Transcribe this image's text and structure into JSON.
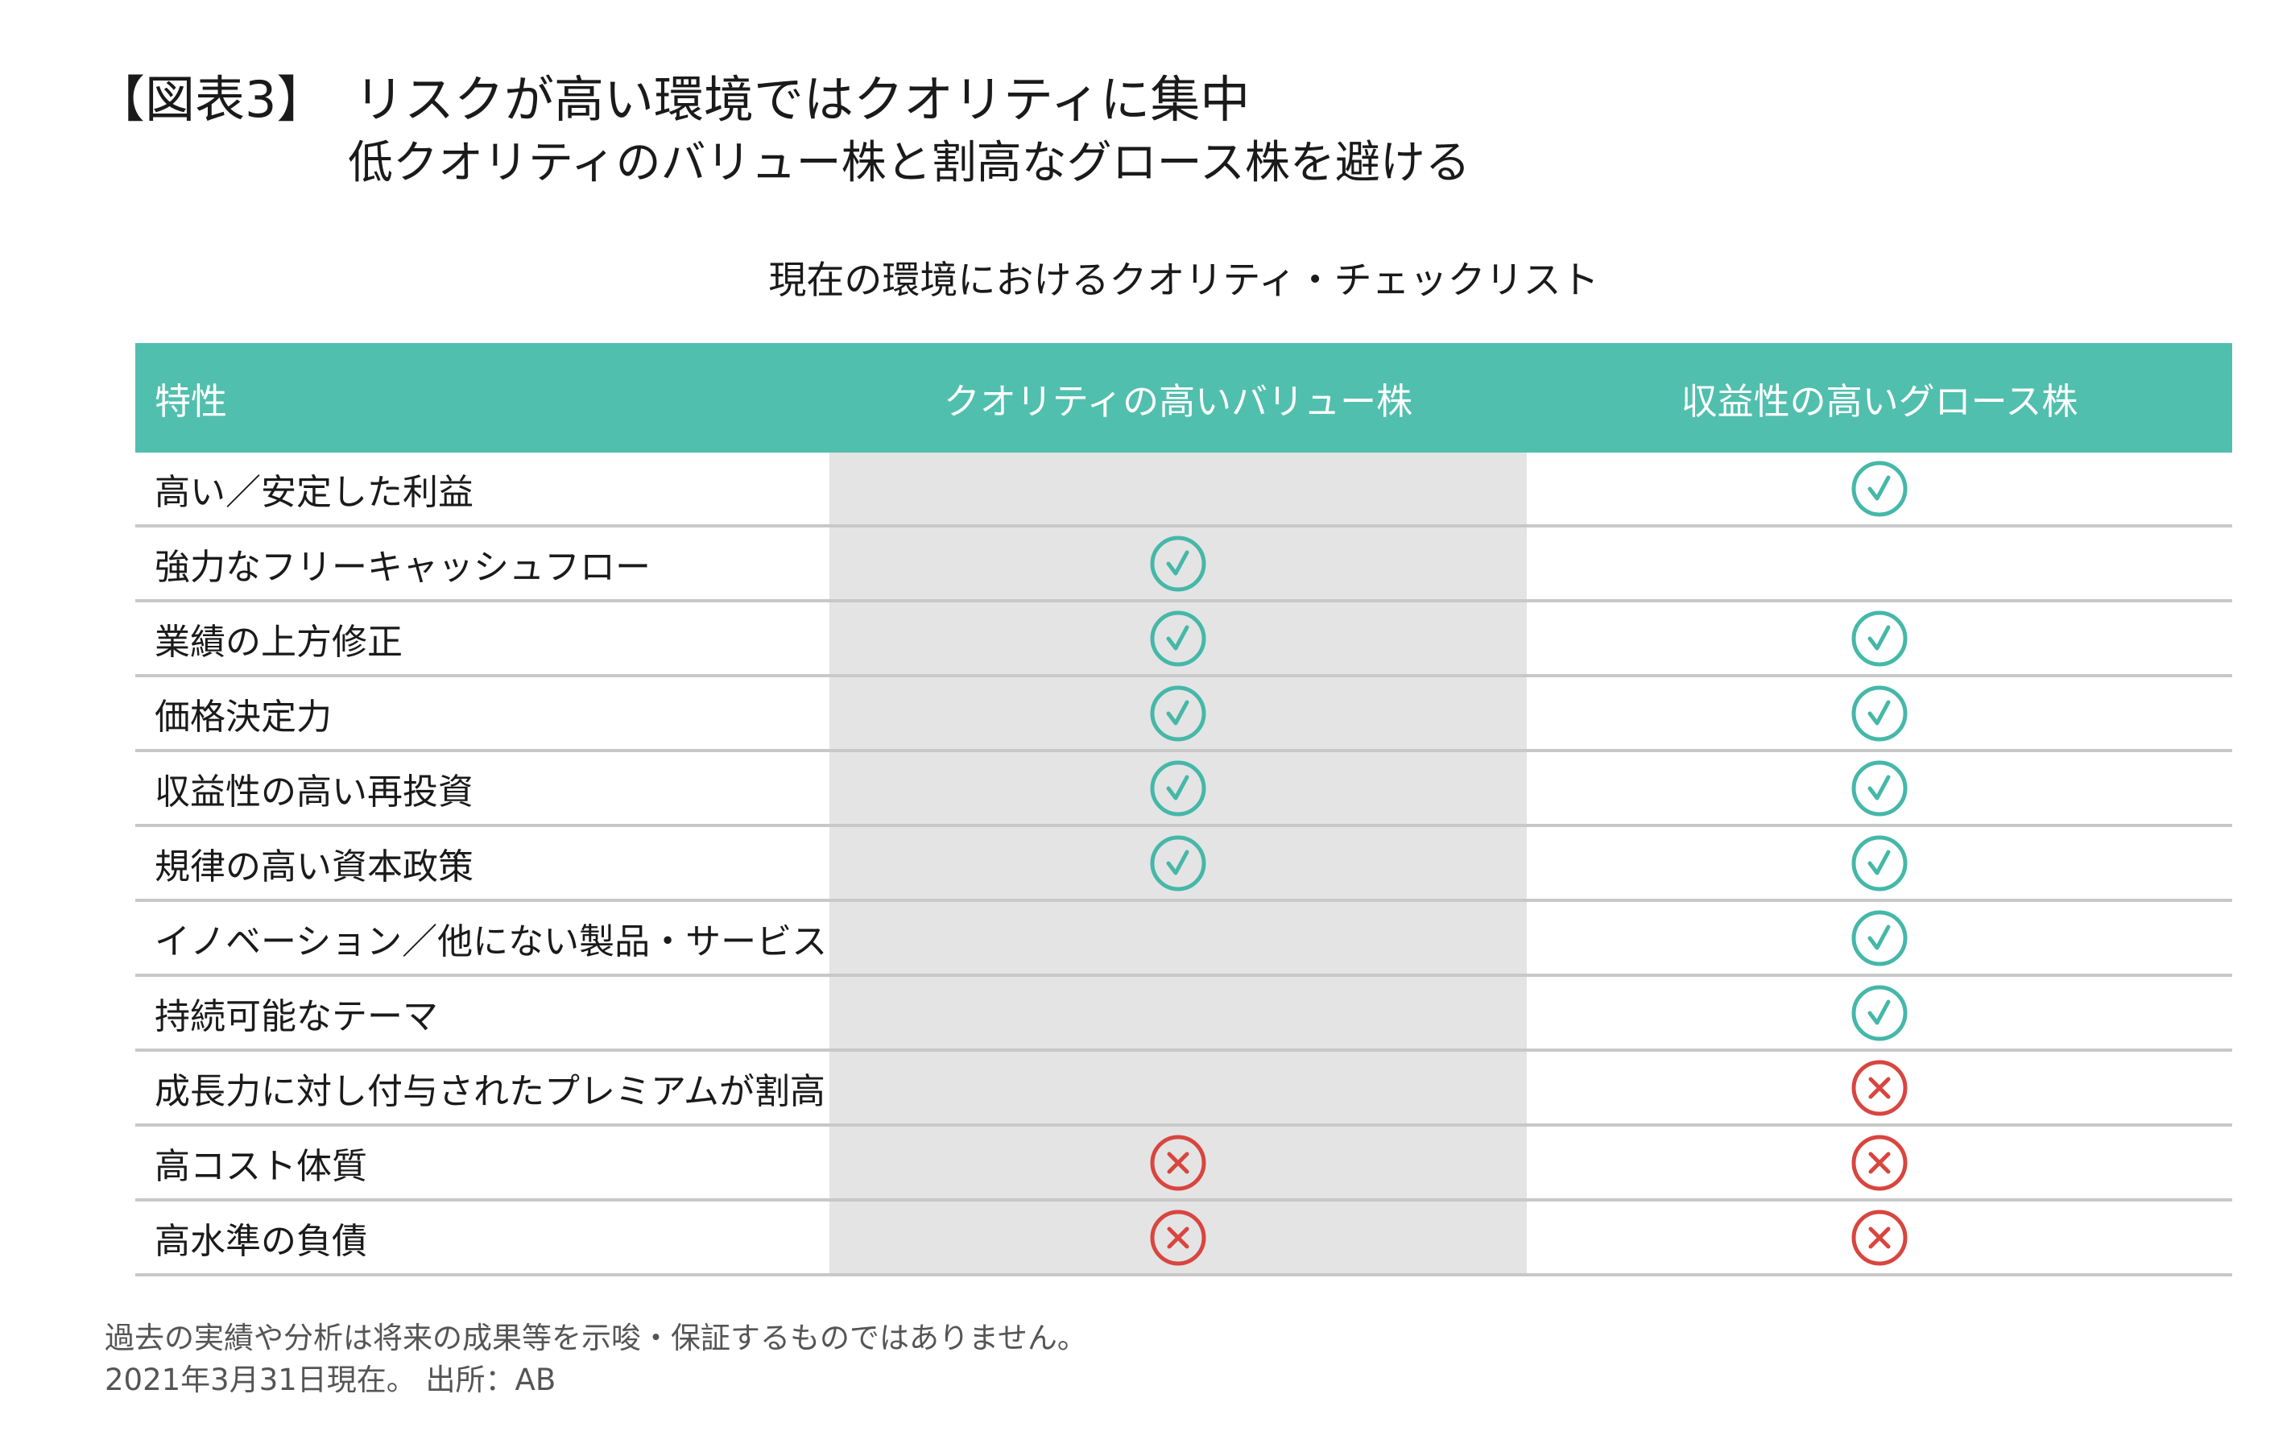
{
  "header": {
    "figure_label": "【図表3】",
    "title": "リスクが高い環境ではクオリティに集中",
    "subtitle": "低クオリティのバリュー株と割高なグロース株を避ける"
  },
  "table": {
    "title": "現在の環境におけるクオリティ・チェックリスト",
    "columns": [
      "特性",
      "クオリティの高いバリュー株",
      "収益性の高いグロース株"
    ],
    "rows": [
      {
        "label": "高い／安定した利益",
        "value": "",
        "growth": "check"
      },
      {
        "label": "強力なフリーキャッシュフロー",
        "value": "check",
        "growth": ""
      },
      {
        "label": "業績の上方修正",
        "value": "check",
        "growth": "check"
      },
      {
        "label": "価格決定力",
        "value": "check",
        "growth": "check"
      },
      {
        "label": "収益性の高い再投資",
        "value": "check",
        "growth": "check"
      },
      {
        "label": "規律の高い資本政策",
        "value": "check",
        "growth": "check"
      },
      {
        "label": "イノベーション／他にない製品・サービス",
        "value": "",
        "growth": "check"
      },
      {
        "label": "持続可能なテーマ",
        "value": "",
        "growth": "check"
      },
      {
        "label": "成長力に対し付与されたプレミアムが割高",
        "value": "",
        "growth": "cross"
      },
      {
        "label": "高コスト体質",
        "value": "cross",
        "growth": "cross"
      },
      {
        "label": "高水準の負債",
        "value": "cross",
        "growth": "cross"
      }
    ]
  },
  "colors": {
    "header_bg": "#51bfad",
    "check": "#45b8a8",
    "cross": "#d9453f",
    "shade": "#e4e4e4"
  },
  "footnote": {
    "line1": "過去の実績や分析は将来の成果等を示唆・保証するものではありません。",
    "line2": "2021年3月31日現在。 出所：AB"
  }
}
